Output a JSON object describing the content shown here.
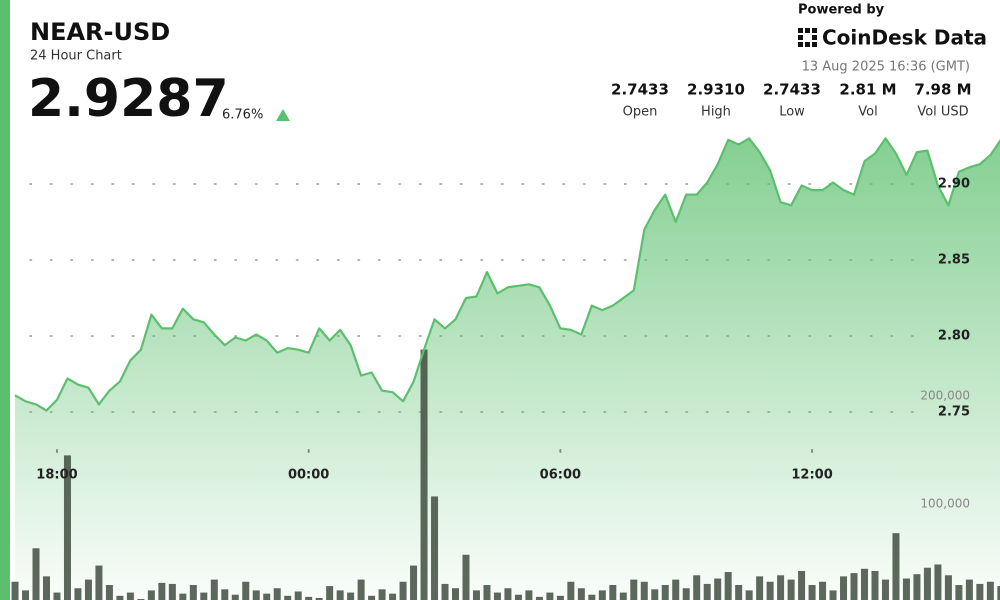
{
  "header": {
    "title": "NEAR-USD",
    "subtitle": "24 Hour Chart",
    "price": "2.9287",
    "change": "6.76%",
    "powered_by": "Powered by",
    "brand": "CoinDesk Data",
    "timestamp": "13 Aug 2025 16:36 (GMT)",
    "stats": [
      {
        "value": "2.7433",
        "label": "Open"
      },
      {
        "value": "2.9310",
        "label": "High"
      },
      {
        "value": "2.7433",
        "label": "Low"
      },
      {
        "value": "2.81 M",
        "label": "Vol"
      },
      {
        "value": "7.98 M",
        "label": "Vol USD"
      }
    ]
  },
  "chart_data": {
    "type": "line",
    "x": [
      17,
      17.25,
      17.5,
      17.75,
      18,
      18.25,
      18.5,
      18.75,
      19,
      19.25,
      19.5,
      19.75,
      20,
      20.25,
      20.5,
      20.75,
      21,
      21.25,
      21.5,
      21.75,
      22,
      22.25,
      22.5,
      22.75,
      23,
      23.25,
      23.5,
      23.75,
      24,
      24.25,
      24.5,
      24.75,
      25,
      25.25,
      25.5,
      25.75,
      26,
      26.25,
      26.5,
      26.75,
      27,
      27.25,
      27.5,
      27.75,
      28,
      28.25,
      28.5,
      28.75,
      29,
      29.25,
      29.5,
      29.75,
      30,
      30.25,
      30.5,
      30.75,
      31,
      31.25,
      31.5,
      31.75,
      32,
      32.25,
      32.5,
      32.75,
      33,
      33.25,
      33.5,
      33.75,
      34,
      34.25,
      34.5,
      34.75,
      35,
      35.25,
      35.5,
      35.75,
      36,
      36.25,
      36.5,
      36.75,
      37,
      37.25,
      37.5,
      37.75,
      38,
      38.25,
      38.5,
      38.75,
      39,
      39.25,
      39.5,
      39.75,
      40,
      40.25,
      40.5
    ],
    "series": [
      {
        "name": "Price",
        "color": "#5cbf6e",
        "values": [
          2.761,
          2.757,
          2.755,
          2.751,
          2.758,
          2.772,
          2.768,
          2.766,
          2.755,
          2.764,
          2.77,
          2.784,
          2.791,
          2.814,
          2.805,
          2.805,
          2.818,
          2.811,
          2.809,
          2.801,
          2.794,
          2.799,
          2.797,
          2.801,
          2.797,
          2.789,
          2.792,
          2.791,
          2.789,
          2.805,
          2.797,
          2.804,
          2.794,
          2.774,
          2.776,
          2.764,
          2.763,
          2.757,
          2.77,
          2.791,
          2.811,
          2.805,
          2.811,
          2.825,
          2.826,
          2.842,
          2.828,
          2.832,
          2.833,
          2.834,
          2.832,
          2.82,
          2.805,
          2.804,
          2.801,
          2.82,
          2.817,
          2.82,
          2.825,
          2.83,
          2.87,
          2.883,
          2.893,
          2.875,
          2.893,
          2.893,
          2.901,
          2.913,
          2.929,
          2.926,
          2.93,
          2.921,
          2.909,
          2.888,
          2.886,
          2.899,
          2.896,
          2.896,
          2.901,
          2.896,
          2.893,
          2.915,
          2.92,
          2.93,
          2.92,
          2.906,
          2.921,
          2.922,
          2.899,
          2.886,
          2.908,
          2.911,
          2.913,
          2.919,
          2.929
        ]
      },
      {
        "name": "Volume",
        "color": "#3f4d40",
        "axis": "y2",
        "type": "bar",
        "values": [
          28000,
          20000,
          59000,
          33000,
          18000,
          145000,
          22000,
          30000,
          43000,
          25000,
          15000,
          18000,
          12000,
          20000,
          27000,
          26000,
          17000,
          25000,
          18000,
          30000,
          21000,
          16000,
          28000,
          20000,
          17000,
          22000,
          15000,
          19000,
          14000,
          13000,
          24000,
          20000,
          18000,
          30000,
          15000,
          21000,
          17000,
          28000,
          43000,
          243000,
          107000,
          26000,
          22000,
          53000,
          20000,
          25000,
          18000,
          22000,
          16000,
          20000,
          14000,
          18000,
          15000,
          28000,
          22000,
          16000,
          20000,
          25000,
          18000,
          30000,
          28000,
          21000,
          25000,
          30000,
          22000,
          34000,
          26000,
          31000,
          37000,
          25000,
          20000,
          33000,
          28000,
          34000,
          30000,
          38000,
          25000,
          28000,
          20000,
          33000,
          36000,
          40000,
          38000,
          30000,
          73000,
          31000,
          35000,
          41000,
          44000,
          34000,
          25000,
          30000,
          26000,
          28000,
          24000
        ]
      }
    ],
    "xlim": [
      16.88,
      40.48
    ],
    "xticks": [
      {
        "value": 18,
        "label": "18:00"
      },
      {
        "value": 24,
        "label": "00:00"
      },
      {
        "value": 30,
        "label": "06:00"
      },
      {
        "value": 36,
        "label": "12:00"
      }
    ],
    "ylim": [
      2.6263,
      2.9421
    ],
    "yticks": [
      {
        "value": 2.9,
        "label": "2.90"
      },
      2.85,
      {
        "value": 2.8,
        "label": "2.80"
      },
      2.75
    ],
    "y2lim": [
      0,
      500000
    ],
    "y2ticks": [
      {
        "value": 200000,
        "label": "200,000"
      },
      {
        "value": 100000,
        "label": "100,000"
      }
    ],
    "grid": true
  }
}
